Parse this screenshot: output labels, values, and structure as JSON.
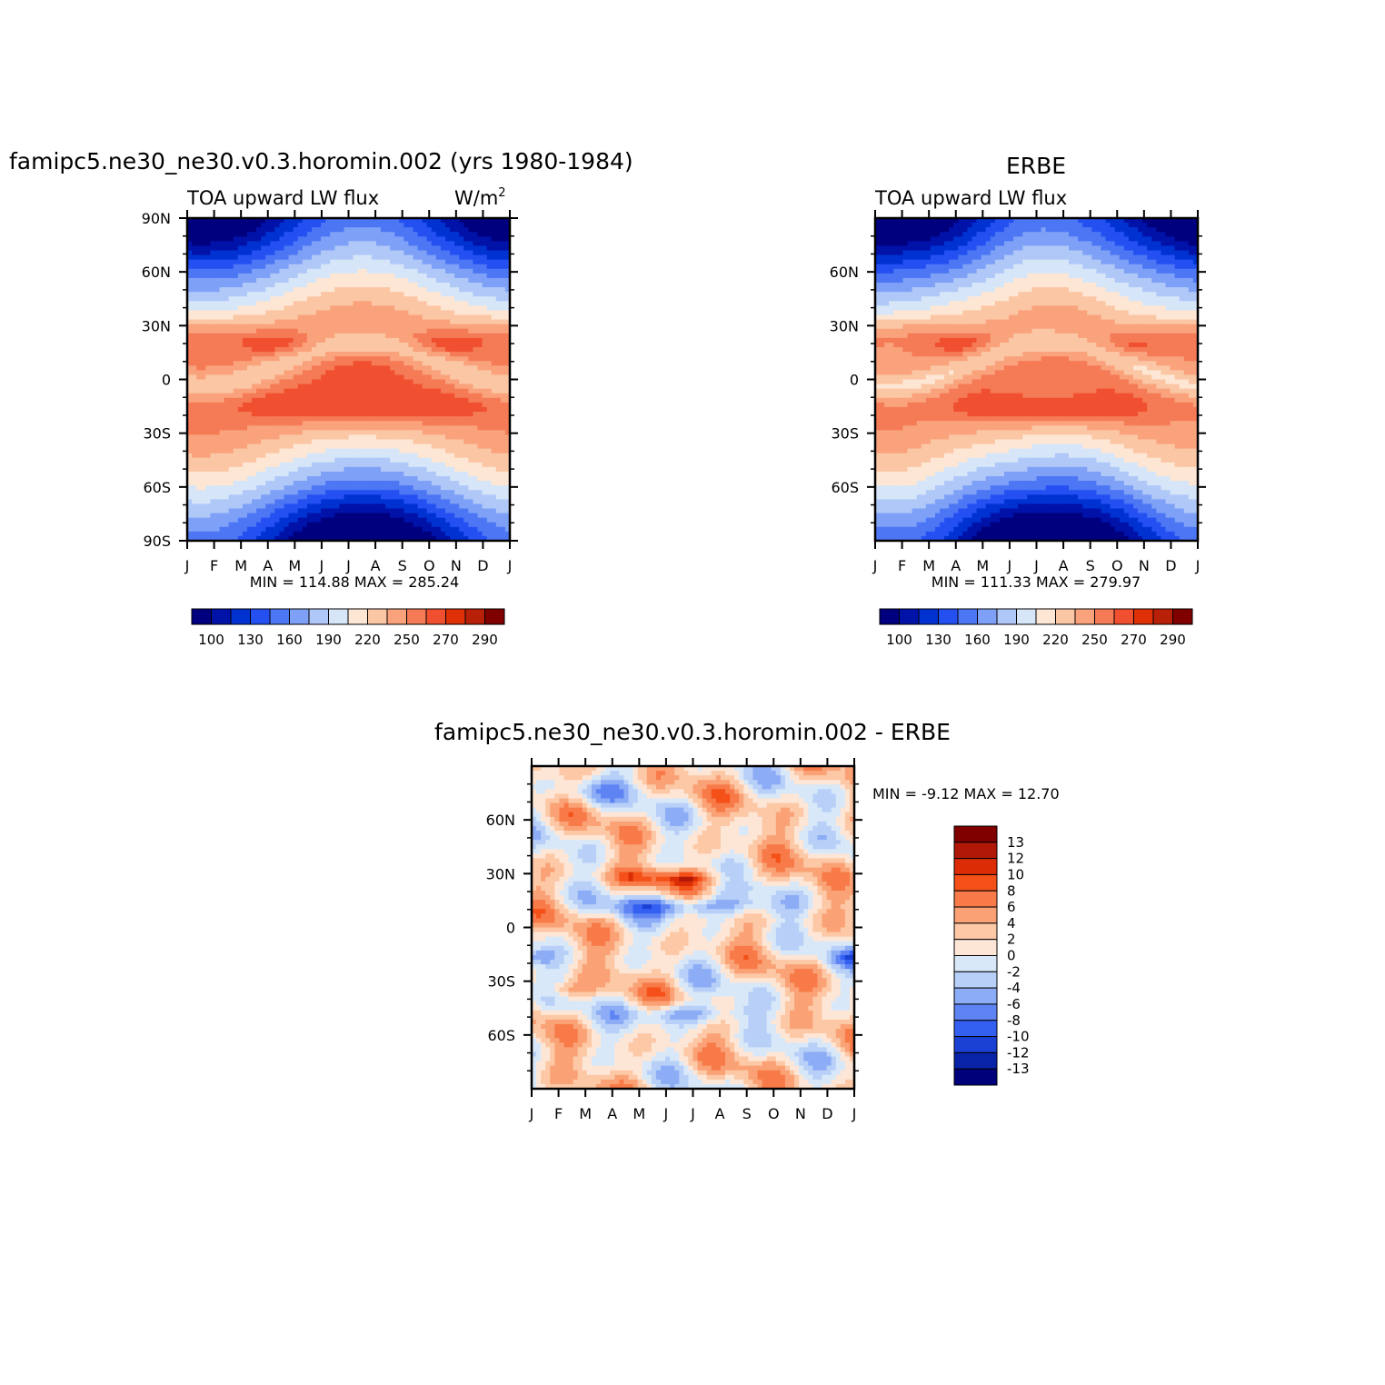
{
  "chart_data": [
    {
      "type": "heatmap",
      "title": "famipc5.ne30_ne30.v0.3.horomin.002 (yrs 1980-1984)",
      "left_subtitle": "TOA upward LW flux",
      "right_subtitle": "W/m",
      "units_superscript": "2",
      "x_tick_labels": [
        "J",
        "F",
        "M",
        "A",
        "M",
        "J",
        "J",
        "A",
        "S",
        "O",
        "N",
        "D",
        "J"
      ],
      "y_tick_labels": [
        "90N",
        "60N",
        "30N",
        "0",
        "30S",
        "60S",
        "90S"
      ],
      "y_values": [
        90,
        60,
        30,
        0,
        -30,
        -60,
        -90
      ],
      "ylim": [
        -90,
        90
      ],
      "stats": "MIN = 114.88 MAX = 285.24",
      "min": 114.88,
      "max": 285.24,
      "field": "model",
      "colorbar_labels": [
        "100",
        "130",
        "160",
        "190",
        "220",
        "250",
        "270",
        "290"
      ]
    },
    {
      "type": "heatmap",
      "title": "ERBE",
      "left_subtitle": "TOA upward LW flux",
      "x_tick_labels": [
        "J",
        "F",
        "M",
        "A",
        "M",
        "J",
        "J",
        "A",
        "S",
        "O",
        "N",
        "D",
        "J"
      ],
      "y_tick_labels": [
        "60N",
        "30N",
        "0",
        "30S",
        "60S"
      ],
      "y_values": [
        60,
        30,
        0,
        -30,
        -60
      ],
      "ylim": [
        -90,
        90
      ],
      "stats": "MIN = 111.33 MAX = 279.97",
      "min": 111.33,
      "max": 279.97,
      "field": "obs",
      "colorbar_labels": [
        "100",
        "130",
        "160",
        "190",
        "220",
        "250",
        "270",
        "290"
      ]
    },
    {
      "type": "heatmap",
      "title": "famipc5.ne30_ne30.v0.3.horomin.002 - ERBE",
      "x_tick_labels": [
        "J",
        "F",
        "M",
        "A",
        "M",
        "J",
        "J",
        "A",
        "S",
        "O",
        "N",
        "D",
        "J"
      ],
      "y_tick_labels": [
        "60N",
        "30N",
        "0",
        "30S",
        "60S"
      ],
      "y_values": [
        60,
        30,
        0,
        -30,
        -60
      ],
      "ylim": [
        -90,
        90
      ],
      "stats": "MIN =   -9.12 MAX =   12.70",
      "min": -9.12,
      "max": 12.7,
      "field": "diff",
      "colorbar_labels": [
        "13",
        "12",
        "10",
        "8",
        "6",
        "4",
        "2",
        "0",
        "-2",
        "-4",
        "-6",
        "-8",
        "-10",
        "-12",
        "-13"
      ]
    }
  ],
  "palettes": {
    "absolute": [
      "#00007f",
      "#0012a8",
      "#0032d2",
      "#2450f2",
      "#4c76f4",
      "#7ea0f6",
      "#b0c8f8",
      "#d6e6f8",
      "#fde6d4",
      "#fbc6a4",
      "#f9a27c",
      "#f57a56",
      "#f05030",
      "#e03008",
      "#b82008",
      "#800000"
    ],
    "absolute_fill_levels": [
      100,
      115,
      130,
      145,
      160,
      175,
      190,
      205,
      220,
      235,
      250,
      260,
      270,
      280,
      290
    ],
    "difference": [
      "#800000",
      "#b01808",
      "#dc2c06",
      "#f45018",
      "#f77a48",
      "#faa276",
      "#fcc8a6",
      "#fee6d6",
      "#d8e8f8",
      "#b8d0f8",
      "#8cacf6",
      "#5e84f4",
      "#3460f2",
      "#1a40d4",
      "#0822a8",
      "#00007a"
    ],
    "difference_fill_levels": [
      13,
      12,
      11,
      10,
      8,
      6,
      4,
      2,
      0,
      -2,
      -4,
      -6,
      -8,
      -10,
      -12,
      -13
    ]
  }
}
